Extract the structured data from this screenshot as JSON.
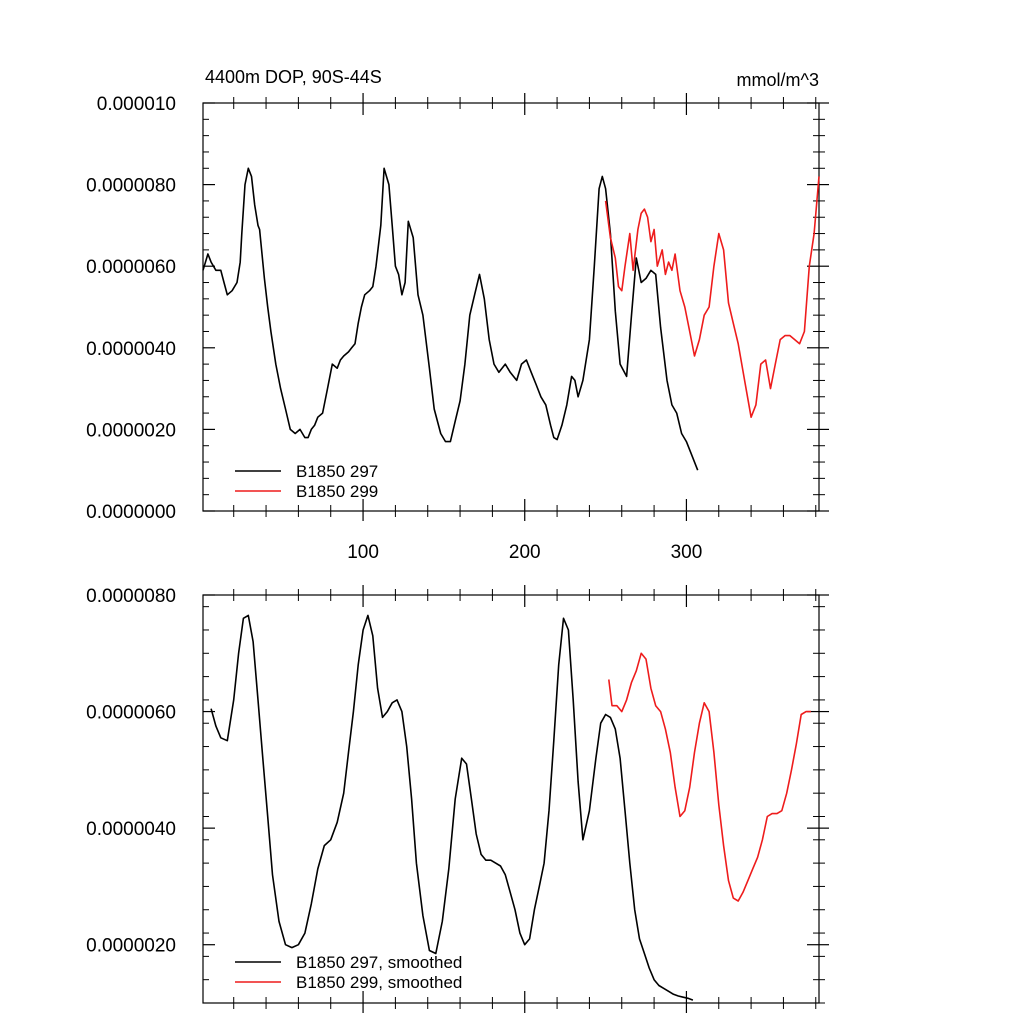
{
  "chart_data": [
    {
      "type": "line",
      "title": "4400m DOP, 90S-44S",
      "units": "mmol/m^3",
      "xlim": [
        1,
        382
      ],
      "ylim": [
        0,
        1e-05
      ],
      "xticks": [
        100,
        200,
        300
      ],
      "xtick_labels": [
        "100",
        "200",
        "300"
      ],
      "yticks": [
        0,
        2e-06,
        4e-06,
        6e-06,
        8e-06,
        1e-05
      ],
      "ytick_labels": [
        "0.0000000",
        "0.0000020",
        "0.0000040",
        "0.0000060",
        "0.0000080",
        "0.000010"
      ],
      "legend_position": "bottom-left",
      "series": [
        {
          "name": "B1850 297",
          "color": "#000000",
          "x": [
            1,
            4,
            6,
            9,
            12,
            14,
            16,
            19,
            22,
            24,
            25,
            27,
            29,
            31,
            33,
            35,
            36,
            37,
            39,
            41,
            43,
            46,
            49,
            52,
            55,
            58,
            61,
            64,
            66,
            68,
            70,
            72,
            75,
            78,
            81,
            84,
            86,
            88,
            91,
            93,
            95,
            97,
            99,
            101,
            104,
            106,
            108,
            111,
            113,
            116,
            118,
            120,
            122,
            124,
            126,
            128,
            131,
            134,
            137,
            141,
            144,
            148,
            151,
            154,
            157,
            160,
            163,
            166,
            169,
            172,
            175,
            178,
            181,
            184,
            188,
            191,
            195,
            198,
            201,
            204,
            207,
            210,
            213,
            216,
            218,
            220,
            223,
            226,
            229,
            231,
            233,
            236,
            240,
            243,
            246,
            248,
            250,
            253,
            256,
            259,
            263,
            266,
            269,
            272,
            275,
            278,
            281,
            284,
            288,
            291,
            294,
            297,
            300,
            303,
            307
          ],
          "y": [
            5.9e-06,
            6.3e-06,
            6.1e-06,
            5.9e-06,
            5.9e-06,
            5.6e-06,
            5.3e-06,
            5.4e-06,
            5.6e-06,
            6.1e-06,
            6.8e-06,
            8e-06,
            8.4e-06,
            8.2e-06,
            7.5e-06,
            7e-06,
            6.9e-06,
            6.5e-06,
            5.7e-06,
            5e-06,
            4.4e-06,
            3.6e-06,
            3e-06,
            2.5e-06,
            2e-06,
            1.9e-06,
            2e-06,
            1.8e-06,
            1.8e-06,
            2e-06,
            2.1e-06,
            2.3e-06,
            2.4e-06,
            3e-06,
            3.6e-06,
            3.5e-06,
            3.7e-06,
            3.8e-06,
            3.9e-06,
            4e-06,
            4.1e-06,
            4.6e-06,
            5e-06,
            5.3e-06,
            5.4e-06,
            5.5e-06,
            6e-06,
            7e-06,
            8.4e-06,
            8e-06,
            7e-06,
            6e-06,
            5.8e-06,
            5.3e-06,
            5.6e-06,
            7.1e-06,
            6.7e-06,
            5.3e-06,
            4.8e-06,
            3.5e-06,
            2.5e-06,
            1.9e-06,
            1.7e-06,
            1.7e-06,
            2.2e-06,
            2.7e-06,
            3.6e-06,
            4.8e-06,
            5.3e-06,
            5.8e-06,
            5.2e-06,
            4.2e-06,
            3.6e-06,
            3.4e-06,
            3.6e-06,
            3.4e-06,
            3.2e-06,
            3.6e-06,
            3.7e-06,
            3.4e-06,
            3.1e-06,
            2.8e-06,
            2.6e-06,
            2.1e-06,
            1.8e-06,
            1.75e-06,
            2.1e-06,
            2.6e-06,
            3.3e-06,
            3.2e-06,
            2.8e-06,
            3.2e-06,
            4.2e-06,
            6e-06,
            7.9e-06,
            8.2e-06,
            7.9e-06,
            6.8e-06,
            4.9e-06,
            3.6e-06,
            3.3e-06,
            4.8e-06,
            6.2e-06,
            5.6e-06,
            5.7e-06,
            5.9e-06,
            5.8e-06,
            4.5e-06,
            3.2e-06,
            2.6e-06,
            2.4e-06,
            1.9e-06,
            1.7e-06,
            1.4e-06,
            1e-06
          ]
        },
        {
          "name": "B1850 299",
          "color": "#ee1c1c",
          "x": [
            250,
            253,
            256,
            258,
            260,
            262,
            265,
            267,
            270,
            272,
            274,
            276,
            278,
            280,
            282,
            285,
            287,
            289,
            291,
            293,
            296,
            299,
            302,
            305,
            308,
            311,
            314,
            317,
            320,
            323,
            326,
            329,
            332,
            336,
            340,
            343,
            346,
            349,
            352,
            355,
            358,
            361,
            364,
            367,
            370,
            373,
            376,
            379,
            382
          ],
          "y": [
            7.6e-06,
            6.7e-06,
            6.2e-06,
            5.5e-06,
            5.4e-06,
            6e-06,
            6.8e-06,
            5.9e-06,
            6.9e-06,
            7.3e-06,
            7.4e-06,
            7.2e-06,
            6.6e-06,
            6.9e-06,
            6e-06,
            6.4e-06,
            5.8e-06,
            6.1e-06,
            5.9e-06,
            6.3e-06,
            5.4e-06,
            5e-06,
            4.4e-06,
            3.8e-06,
            4.2e-06,
            4.8e-06,
            5e-06,
            6e-06,
            6.8e-06,
            6.4e-06,
            5.1e-06,
            4.6e-06,
            4.1e-06,
            3.2e-06,
            2.3e-06,
            2.6e-06,
            3.6e-06,
            3.7e-06,
            3e-06,
            3.6e-06,
            4.2e-06,
            4.3e-06,
            4.3e-06,
            4.2e-06,
            4.1e-06,
            4.4e-06,
            6e-06,
            6.8e-06,
            8.2e-06
          ]
        }
      ]
    },
    {
      "type": "line",
      "xlim": [
        1,
        382
      ],
      "ylim": [
        1e-06,
        8e-06
      ],
      "xticks": [
        100,
        200,
        300
      ],
      "yticks": [
        2e-06,
        4e-06,
        6e-06,
        8e-06
      ],
      "ytick_labels": [
        "0.0000020",
        "0.0000040",
        "0.0000060",
        "0.0000080"
      ],
      "legend_position": "bottom-left",
      "series": [
        {
          "name": "B1850 297, smoothed",
          "color": "#000000",
          "x": [
            6,
            9,
            12,
            16,
            20,
            23,
            26,
            29,
            32,
            35,
            38,
            41,
            44,
            48,
            52,
            56,
            60,
            64,
            68,
            72,
            76,
            80,
            84,
            88,
            91,
            94,
            97,
            100,
            103,
            106,
            109,
            112,
            115,
            118,
            121,
            124,
            127,
            130,
            133,
            137,
            141,
            145,
            149,
            153,
            157,
            161,
            164,
            167,
            170,
            173,
            176,
            179,
            182,
            185,
            188,
            191,
            194,
            197,
            200,
            203,
            206,
            209,
            212,
            215,
            218,
            221,
            224,
            227,
            230,
            233,
            236,
            240,
            244,
            247,
            250,
            253,
            256,
            259,
            262,
            265,
            268,
            271,
            274,
            277,
            280,
            283,
            286,
            289,
            292,
            295,
            298,
            301,
            304
          ],
          "y": [
            6.05e-06,
            5.75e-06,
            5.55e-06,
            5.5e-06,
            6.2e-06,
            7e-06,
            7.6e-06,
            7.65e-06,
            7.2e-06,
            6.2e-06,
            5.2e-06,
            4.2e-06,
            3.2e-06,
            2.4e-06,
            2e-06,
            1.95e-06,
            2e-06,
            2.2e-06,
            2.7e-06,
            3.3e-06,
            3.7e-06,
            3.8e-06,
            4.1e-06,
            4.6e-06,
            5.3e-06,
            6e-06,
            6.8e-06,
            7.4e-06,
            7.65e-06,
            7.3e-06,
            6.4e-06,
            5.9e-06,
            6e-06,
            6.15e-06,
            6.2e-06,
            6e-06,
            5.4e-06,
            4.5e-06,
            3.4e-06,
            2.5e-06,
            1.9e-06,
            1.85e-06,
            2.4e-06,
            3.3e-06,
            4.5e-06,
            5.2e-06,
            5.1e-06,
            4.5e-06,
            3.9e-06,
            3.55e-06,
            3.45e-06,
            3.45e-06,
            3.4e-06,
            3.35e-06,
            3.2e-06,
            2.9e-06,
            2.6e-06,
            2.2e-06,
            2e-06,
            2.1e-06,
            2.6e-06,
            3e-06,
            3.4e-06,
            4.3e-06,
            5.5e-06,
            6.8e-06,
            7.6e-06,
            7.4e-06,
            6.2e-06,
            4.8e-06,
            3.8e-06,
            4.3e-06,
            5.2e-06,
            5.8e-06,
            5.95e-06,
            5.9e-06,
            5.7e-06,
            5.2e-06,
            4.3e-06,
            3.4e-06,
            2.6e-06,
            2.1e-06,
            1.85e-06,
            1.6e-06,
            1.4e-06,
            1.3e-06,
            1.25e-06,
            1.2e-06,
            1.15e-06,
            1.12e-06,
            1.1e-06,
            1.08e-06,
            1.05e-06
          ]
        },
        {
          "name": "B1850 299, smoothed",
          "color": "#ee1c1c",
          "x": [
            252,
            254,
            257,
            260,
            263,
            266,
            269,
            272,
            275,
            278,
            281,
            284,
            287,
            290,
            293,
            296,
            299,
            302,
            305,
            308,
            311,
            314,
            317,
            320,
            323,
            326,
            329,
            332,
            335,
            338,
            341,
            344,
            347,
            350,
            353,
            356,
            359,
            362,
            365,
            368,
            371,
            374,
            377
          ],
          "y": [
            6.55e-06,
            6.1e-06,
            6.1e-06,
            6e-06,
            6.2e-06,
            6.5e-06,
            6.7e-06,
            7e-06,
            6.9e-06,
            6.4e-06,
            6.1e-06,
            6e-06,
            5.7e-06,
            5.3e-06,
            4.7e-06,
            4.2e-06,
            4.3e-06,
            4.7e-06,
            5.3e-06,
            5.8e-06,
            6.15e-06,
            6e-06,
            5.3e-06,
            4.4e-06,
            3.7e-06,
            3.1e-06,
            2.8e-06,
            2.75e-06,
            2.9e-06,
            3.1e-06,
            3.3e-06,
            3.5e-06,
            3.8e-06,
            4.2e-06,
            4.25e-06,
            4.25e-06,
            4.3e-06,
            4.6e-06,
            5e-06,
            5.45e-06,
            5.95e-06,
            6e-06,
            6e-06
          ]
        }
      ]
    }
  ]
}
